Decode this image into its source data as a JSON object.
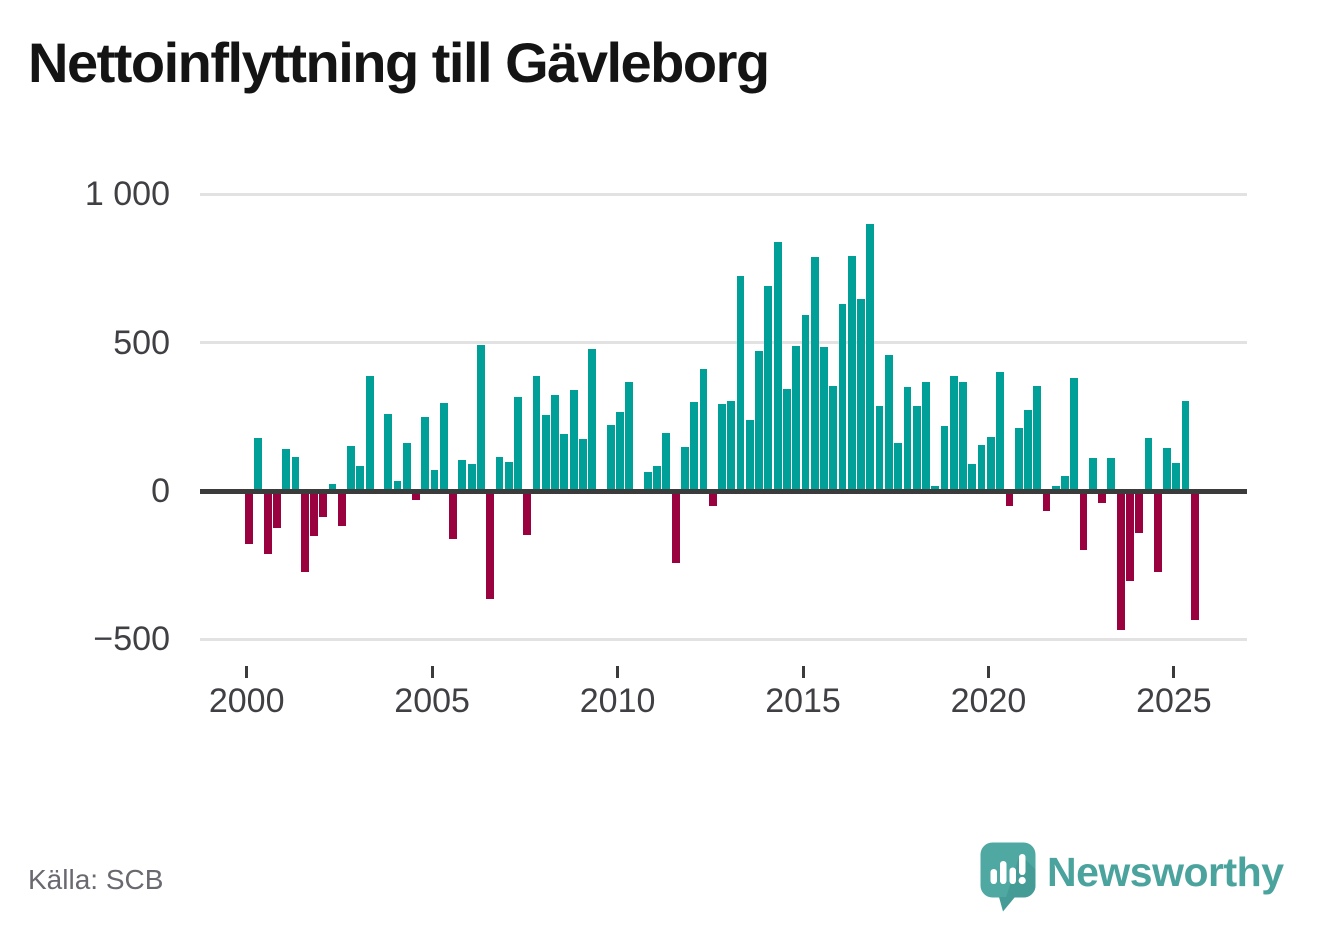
{
  "header": {
    "title": "Nettoinflyttning till Gävleborg"
  },
  "footer": {
    "source_label": "Källa: SCB",
    "brand": {
      "name": "Newsworthy",
      "icon": "newsworthy-speech-bubble-bar-chart-icon"
    }
  },
  "theme": {
    "positive_bar_color": "#00A099",
    "negative_bar_color": "#99013F",
    "brand_color": "#4BA39E",
    "logo_bubble_color": "#4FA8A2",
    "logo_bubble_shade_color": "#459B95",
    "gridline_color": "#E2E2E2",
    "axis_color": "#3B3B3B",
    "title_color": "#141414",
    "tick_label_color": "#3F3F44",
    "source_color": "#696970"
  },
  "chart_data": {
    "type": "bar",
    "title": "Nettoinflyttning till Gävleborg",
    "frequency": "quarterly",
    "grid": "horizontal",
    "legend": "none",
    "ylim": [
      -560,
      1060
    ],
    "y_ticks": [
      {
        "label": "1 000",
        "value": 1000
      },
      {
        "label": "500",
        "value": 500
      },
      {
        "label": "0",
        "value": 0
      },
      {
        "label": "−500",
        "value": -500
      }
    ],
    "x_ticks": [
      {
        "label": "2000",
        "quarter_index": 0
      },
      {
        "label": "2005",
        "quarter_index": 20
      },
      {
        "label": "2010",
        "quarter_index": 40
      },
      {
        "label": "2015",
        "quarter_index": 60
      },
      {
        "label": "2020",
        "quarter_index": 80
      },
      {
        "label": "2025",
        "quarter_index": 100
      }
    ],
    "quarters": [
      "2000 Q1",
      "2000 Q2",
      "2000 Q3",
      "2000 Q4",
      "2001 Q1",
      "2001 Q2",
      "2001 Q3",
      "2001 Q4",
      "2002 Q1",
      "2002 Q2",
      "2002 Q3",
      "2002 Q4",
      "2003 Q1",
      "2003 Q2",
      "2003 Q3",
      "2003 Q4",
      "2004 Q1",
      "2004 Q2",
      "2004 Q3",
      "2004 Q4",
      "2005 Q1",
      "2005 Q2",
      "2005 Q3",
      "2005 Q4",
      "2006 Q1",
      "2006 Q2",
      "2006 Q3",
      "2006 Q4",
      "2007 Q1",
      "2007 Q2",
      "2007 Q3",
      "2007 Q4",
      "2008 Q1",
      "2008 Q2",
      "2008 Q3",
      "2008 Q4",
      "2009 Q1",
      "2009 Q2",
      "2009 Q3",
      "2009 Q4",
      "2010 Q1",
      "2010 Q2",
      "2010 Q3",
      "2010 Q4",
      "2011 Q1",
      "2011 Q2",
      "2011 Q3",
      "2011 Q4",
      "2012 Q1",
      "2012 Q2",
      "2012 Q3",
      "2012 Q4",
      "2013 Q1",
      "2013 Q2",
      "2013 Q3",
      "2013 Q4",
      "2014 Q1",
      "2014 Q2",
      "2014 Q3",
      "2014 Q4",
      "2015 Q1",
      "2015 Q2",
      "2015 Q3",
      "2015 Q4",
      "2016 Q1",
      "2016 Q2",
      "2016 Q3",
      "2016 Q4",
      "2017 Q1",
      "2017 Q2",
      "2017 Q3",
      "2017 Q4",
      "2018 Q1",
      "2018 Q2",
      "2018 Q3",
      "2018 Q4",
      "2019 Q1",
      "2019 Q2",
      "2019 Q3",
      "2019 Q4",
      "2020 Q1",
      "2020 Q2",
      "2020 Q3",
      "2020 Q4",
      "2021 Q1",
      "2021 Q2",
      "2021 Q3",
      "2021 Q4",
      "2022 Q1",
      "2022 Q2",
      "2022 Q3",
      "2022 Q4",
      "2023 Q1",
      "2023 Q2",
      "2023 Q3",
      "2023 Q4",
      "2024 Q1",
      "2024 Q2",
      "2024 Q3",
      "2024 Q4",
      "2025 Q1",
      "2025 Q2",
      "2025 Q3"
    ],
    "values": [
      -180,
      178,
      -211,
      -124,
      143,
      116,
      -272,
      -153,
      -86,
      22,
      -117,
      151,
      85,
      389,
      0,
      260,
      35,
      162,
      -30,
      251,
      72,
      298,
      -163,
      104,
      90,
      492,
      -363,
      115,
      98,
      316,
      -148,
      388,
      257,
      324,
      192,
      342,
      177,
      478,
      0,
      223,
      266,
      366,
      0,
      65,
      85,
      194,
      -242,
      150,
      299,
      412,
      -52,
      295,
      305,
      725,
      240,
      472,
      691,
      840,
      344,
      489,
      595,
      790,
      487,
      355,
      631,
      793,
      648,
      901,
      288,
      458,
      163,
      349,
      286,
      368,
      16,
      218,
      388,
      368,
      90,
      156,
      183,
      402,
      -49,
      211,
      272,
      355,
      -68,
      16,
      52,
      381,
      -198,
      110,
      -40,
      110,
      -469,
      -305,
      -141,
      180,
      -274,
      145,
      95,
      305,
      -435
    ]
  }
}
